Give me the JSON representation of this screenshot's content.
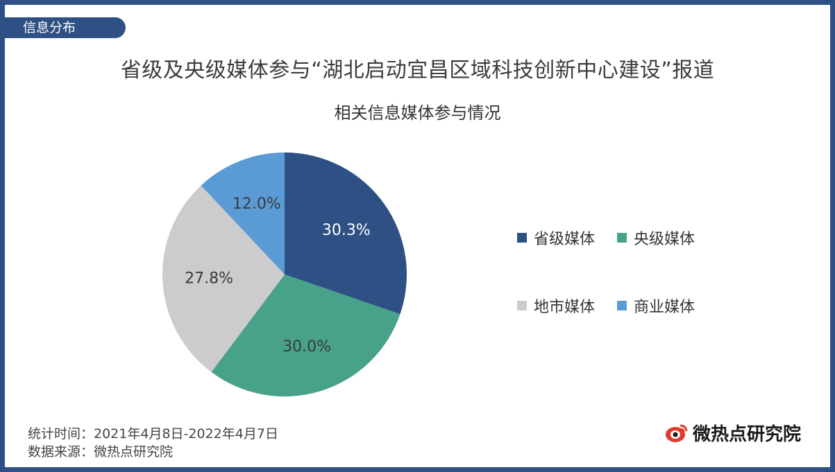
{
  "header": {
    "section_tag": "信息分布",
    "title": "省级及央级媒体参与“湖北启动宜昌区域科技创新中心建设”报道",
    "subtitle": "相关信息媒体参与情况"
  },
  "colors": {
    "frame": "#2e5084",
    "provincial": "#2e5084",
    "central": "#48a28a",
    "local": "#cccccc",
    "commercial": "#5b9bd5"
  },
  "legend": [
    {
      "label": "省级媒体",
      "color": "#2e5084"
    },
    {
      "label": "央级媒体",
      "color": "#48a28a"
    },
    {
      "label": "地市媒体",
      "color": "#cccccc"
    },
    {
      "label": "商业媒体",
      "color": "#5b9bd5"
    }
  ],
  "chart_data": {
    "type": "pie",
    "title": "相关信息媒体参与情况",
    "categories": [
      "省级媒体",
      "央级媒体",
      "地市媒体",
      "商业媒体"
    ],
    "values": [
      30.3,
      30.0,
      27.8,
      12.0
    ],
    "labels": [
      "30.3%",
      "30.0%",
      "27.8%",
      "12.0%"
    ],
    "colors": [
      "#2e5084",
      "#48a28a",
      "#cccccc",
      "#5b9bd5"
    ],
    "start_angle": "12 o'clock",
    "direction": "clockwise",
    "legend_position": "right"
  },
  "footer": {
    "stat_time": "统计时间：2021年4月8日-2022年4月7日",
    "source": "数据来源：微热点研究院",
    "brand": "微热点研究院",
    "brand_icon": "weibo-eye-logo"
  }
}
